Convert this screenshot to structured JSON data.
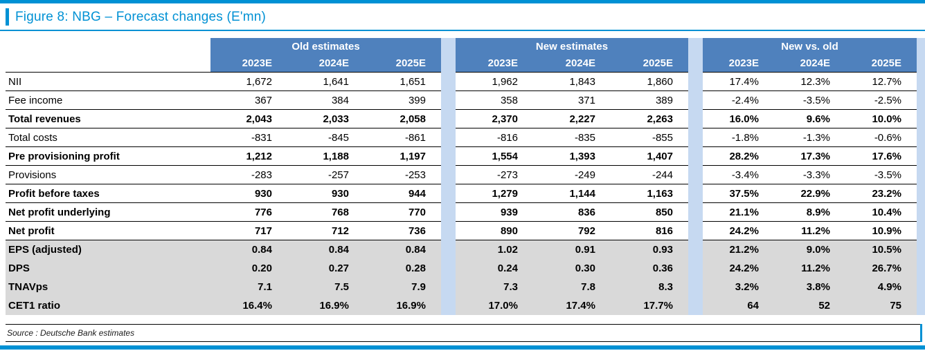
{
  "title": "Figure 8: NBG – Forecast changes (E'mn)",
  "source": "Source : Deutsche Bank estimates",
  "colors": {
    "accent": "#0091D4",
    "header_blue": "#4F81BD",
    "gap_blue": "#C6D9F1",
    "shaded_gray": "#D9D9D9"
  },
  "table": {
    "groups": [
      {
        "title": "Old estimates",
        "years": [
          "2023E",
          "2024E",
          "2025E"
        ]
      },
      {
        "title": "New estimates",
        "years": [
          "2023E",
          "2024E",
          "2025E"
        ]
      },
      {
        "title": "New vs. old",
        "years": [
          "2023E",
          "2024E",
          "2025E"
        ]
      }
    ],
    "rows": [
      {
        "label": "NII",
        "bold": false,
        "shaded": false,
        "old": [
          "1,672",
          "1,641",
          "1,651"
        ],
        "new": [
          "1,962",
          "1,843",
          "1,860"
        ],
        "delta": [
          "17.4%",
          "12.3%",
          "12.7%"
        ]
      },
      {
        "label": "Fee income",
        "bold": false,
        "shaded": false,
        "old": [
          "367",
          "384",
          "399"
        ],
        "new": [
          "358",
          "371",
          "389"
        ],
        "delta": [
          "-2.4%",
          "-3.5%",
          "-2.5%"
        ]
      },
      {
        "label": "Total revenues",
        "bold": true,
        "shaded": false,
        "old": [
          "2,043",
          "2,033",
          "2,058"
        ],
        "new": [
          "2,370",
          "2,227",
          "2,263"
        ],
        "delta": [
          "16.0%",
          "9.6%",
          "10.0%"
        ]
      },
      {
        "label": "Total costs",
        "bold": false,
        "shaded": false,
        "old": [
          "-831",
          "-845",
          "-861"
        ],
        "new": [
          "-816",
          "-835",
          "-855"
        ],
        "delta": [
          "-1.8%",
          "-1.3%",
          "-0.6%"
        ]
      },
      {
        "label": "Pre provisioning profit",
        "bold": true,
        "shaded": false,
        "old": [
          "1,212",
          "1,188",
          "1,197"
        ],
        "new": [
          "1,554",
          "1,393",
          "1,407"
        ],
        "delta": [
          "28.2%",
          "17.3%",
          "17.6%"
        ]
      },
      {
        "label": "Provisions",
        "bold": false,
        "shaded": false,
        "old": [
          "-283",
          "-257",
          "-253"
        ],
        "new": [
          "-273",
          "-249",
          "-244"
        ],
        "delta": [
          "-3.4%",
          "-3.3%",
          "-3.5%"
        ]
      },
      {
        "label": "Profit before taxes",
        "bold": true,
        "shaded": false,
        "old": [
          "930",
          "930",
          "944"
        ],
        "new": [
          "1,279",
          "1,144",
          "1,163"
        ],
        "delta": [
          "37.5%",
          "22.9%",
          "23.2%"
        ]
      },
      {
        "label": "Net profit underlying",
        "bold": true,
        "shaded": false,
        "old": [
          "776",
          "768",
          "770"
        ],
        "new": [
          "939",
          "836",
          "850"
        ],
        "delta": [
          "21.1%",
          "8.9%",
          "10.4%"
        ]
      },
      {
        "label": "Net profit",
        "bold": true,
        "shaded": false,
        "old": [
          "717",
          "712",
          "736"
        ],
        "new": [
          "890",
          "792",
          "816"
        ],
        "delta": [
          "24.2%",
          "11.2%",
          "10.9%"
        ]
      },
      {
        "label": "EPS (adjusted)",
        "bold": true,
        "shaded": true,
        "old": [
          "0.84",
          "0.84",
          "0.84"
        ],
        "new": [
          "1.02",
          "0.91",
          "0.93"
        ],
        "delta": [
          "21.2%",
          "9.0%",
          "10.5%"
        ]
      },
      {
        "label": "DPS",
        "bold": true,
        "shaded": true,
        "old": [
          "0.20",
          "0.27",
          "0.28"
        ],
        "new": [
          "0.24",
          "0.30",
          "0.36"
        ],
        "delta": [
          "24.2%",
          "11.2%",
          "26.7%"
        ]
      },
      {
        "label": "TNAVps",
        "bold": true,
        "shaded": true,
        "old": [
          "7.1",
          "7.5",
          "7.9"
        ],
        "new": [
          "7.3",
          "7.8",
          "8.3"
        ],
        "delta": [
          "3.2%",
          "3.8%",
          "4.9%"
        ]
      },
      {
        "label": "CET1 ratio",
        "bold": true,
        "shaded": true,
        "old": [
          "16.4%",
          "16.9%",
          "16.9%"
        ],
        "new": [
          "17.0%",
          "17.4%",
          "17.7%"
        ],
        "delta": [
          "64",
          "52",
          "75"
        ]
      }
    ]
  }
}
